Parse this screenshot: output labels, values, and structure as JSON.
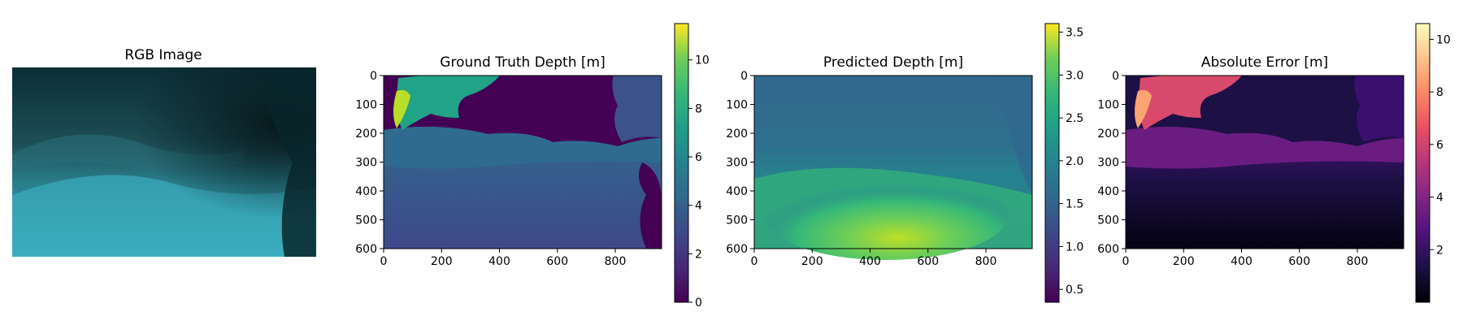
{
  "chart_data": [
    {
      "type": "image",
      "title": "RGB Image",
      "axes_visible": false,
      "colors": {
        "deep": "#0c2e36",
        "mid": "#1d5c66",
        "seabed": "#3fb6c8",
        "shadow": "#06181c"
      }
    },
    {
      "type": "heatmap",
      "title": "Ground Truth Depth [m]",
      "colormap": "viridis",
      "xlim": [
        0,
        960
      ],
      "ylim": [
        600,
        0
      ],
      "xticks": [
        "0",
        "200",
        "400",
        "600",
        "800"
      ],
      "xtick_values": [
        0,
        200,
        400,
        600,
        800
      ],
      "yticks": [
        "0",
        "100",
        "200",
        "300",
        "400",
        "500",
        "600"
      ],
      "ytick_values": [
        0,
        100,
        200,
        300,
        400,
        500,
        600
      ],
      "colorbar": {
        "range": [
          0,
          11.5
        ],
        "ticks": [
          "0",
          "2",
          "4",
          "6",
          "8",
          "10"
        ],
        "tick_values": [
          0,
          2,
          4,
          6,
          8,
          10
        ]
      },
      "regions": {
        "invalid": 0,
        "rock_near": 10.5,
        "rock_far": 6.5,
        "mid_band": 4.2,
        "foreground": 3.2,
        "right_wall": 3.6
      }
    },
    {
      "type": "heatmap",
      "title": "Predicted Depth [m]",
      "colormap": "viridis",
      "xlim": [
        0,
        960
      ],
      "ylim": [
        600,
        0
      ],
      "xticks": [
        "0",
        "200",
        "400",
        "600",
        "800"
      ],
      "xtick_values": [
        0,
        200,
        400,
        600,
        800
      ],
      "yticks": [
        "0",
        "100",
        "200",
        "300",
        "400",
        "500",
        "600"
      ],
      "ytick_values": [
        0,
        100,
        200,
        300,
        400,
        500,
        600
      ],
      "colorbar": {
        "range": [
          0.35,
          3.6
        ],
        "ticks": [
          "0.5",
          "1.0",
          "1.5",
          "2.0",
          "2.5",
          "3.0",
          "3.5"
        ],
        "tick_values": [
          0.5,
          1.0,
          1.5,
          2.0,
          2.5,
          3.0,
          3.5
        ]
      },
      "regions": {
        "background": 1.45,
        "mid_band": 1.75,
        "seabed": 2.6,
        "seabed_peak": 3.2
      }
    },
    {
      "type": "heatmap",
      "title": "Absolute Error [m]",
      "colormap": "magma",
      "xlim": [
        0,
        960
      ],
      "ylim": [
        600,
        0
      ],
      "xticks": [
        "0",
        "200",
        "400",
        "600",
        "800"
      ],
      "xtick_values": [
        0,
        200,
        400,
        600,
        800
      ],
      "yticks": [
        "0",
        "100",
        "200",
        "300",
        "400",
        "500",
        "600"
      ],
      "ytick_values": [
        0,
        100,
        200,
        300,
        400,
        500,
        600
      ],
      "colorbar": {
        "range": [
          0,
          10.6
        ],
        "ticks": [
          "2",
          "4",
          "6",
          "8",
          "10"
        ],
        "tick_values": [
          2,
          4,
          6,
          8,
          10
        ]
      },
      "regions": {
        "invalid": 0.9,
        "rock_near": 9.0,
        "rock_far": 5.2,
        "mid_band": 3.0,
        "foreground": 0.6,
        "right_wall": 2.3
      }
    }
  ]
}
